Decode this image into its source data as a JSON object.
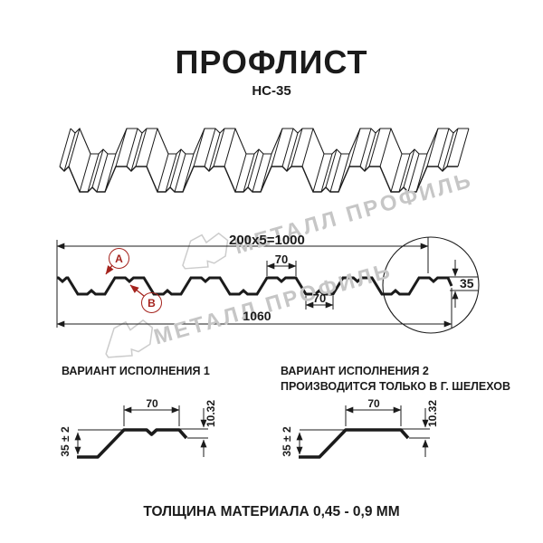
{
  "header": {
    "title": "ПРОФЛИСТ",
    "subtitle": "НС-35"
  },
  "watermark": {
    "text": "МЕТАЛЛ ПРОФИЛЬ"
  },
  "section": {
    "dim_total_pitch": "200x5=1000",
    "dim_top_flange": "70",
    "dim_bottom_flange": "70",
    "dim_useful_width": "1060",
    "dim_height": "35",
    "label_a": "А",
    "label_b": "В"
  },
  "variant1": {
    "heading": "ВАРИАНТ ИСПОЛНЕНИЯ 1",
    "dim_top": "70",
    "dim_height": "35 ± 2",
    "dim_lip": "10.32"
  },
  "variant2": {
    "heading_line1": "ВАРИАНТ ИСПОЛНЕНИЯ 2",
    "heading_line2": "ПРОИЗВОДИТСЯ ТОЛЬКО В Г. ШЕЛЕХОВ",
    "dim_top": "70",
    "dim_height": "35 ± 2",
    "dim_lip": "10.32"
  },
  "footer": {
    "text": "ТОЛЩИНА МАТЕРИАЛА 0,45 - 0,9 ММ"
  },
  "colors": {
    "line": "#1b1b1b",
    "accent_red": "#a5231d",
    "watermark_gray": "#c6c6c6"
  }
}
